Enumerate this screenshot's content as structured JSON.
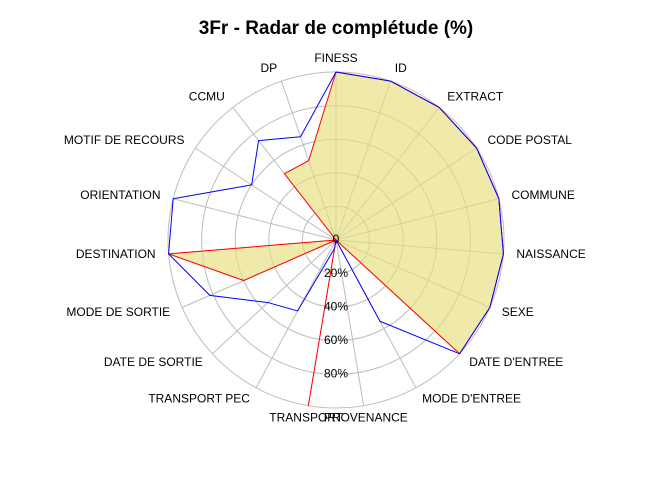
{
  "chart_data": {
    "type": "radar",
    "title": "3Fr - Radar de complétude (%)",
    "categories": [
      "FINESS",
      "ID",
      "EXTRACT",
      "CODE POSTAL",
      "COMMUNE",
      "NAISSANCE",
      "SEXE",
      "DATE D'ENTREE",
      "MODE D'ENTREE",
      "PROVENANCE",
      "TRANSPORT",
      "TRANSPORT PEC",
      "DATE DE SORTIE",
      "MODE DE SORTIE",
      "DESTINATION",
      "ORIENTATION",
      "MOTIF DE RECOURS",
      "CCMU",
      "DP"
    ],
    "rlim": [
      0,
      100
    ],
    "radial_ticks": [
      0,
      20,
      40,
      60,
      80
    ],
    "radial_tick_labels": [
      "0",
      "20%",
      "40%",
      "60%",
      "80%"
    ],
    "grid": true,
    "series": [
      {
        "color": "#ff0000",
        "fill": "#e8df7c",
        "filled": true,
        "values": [
          100,
          100,
          100,
          100,
          100,
          100,
          100,
          100,
          0,
          0,
          100,
          0,
          0,
          60,
          100,
          0,
          0,
          50,
          50
        ]
      },
      {
        "color": "#0000ff",
        "filled": false,
        "values": [
          100,
          100,
          100,
          100,
          100,
          100,
          100,
          100,
          55,
          0,
          5,
          48,
          55,
          82,
          100,
          100,
          60,
          75,
          65
        ]
      }
    ]
  }
}
